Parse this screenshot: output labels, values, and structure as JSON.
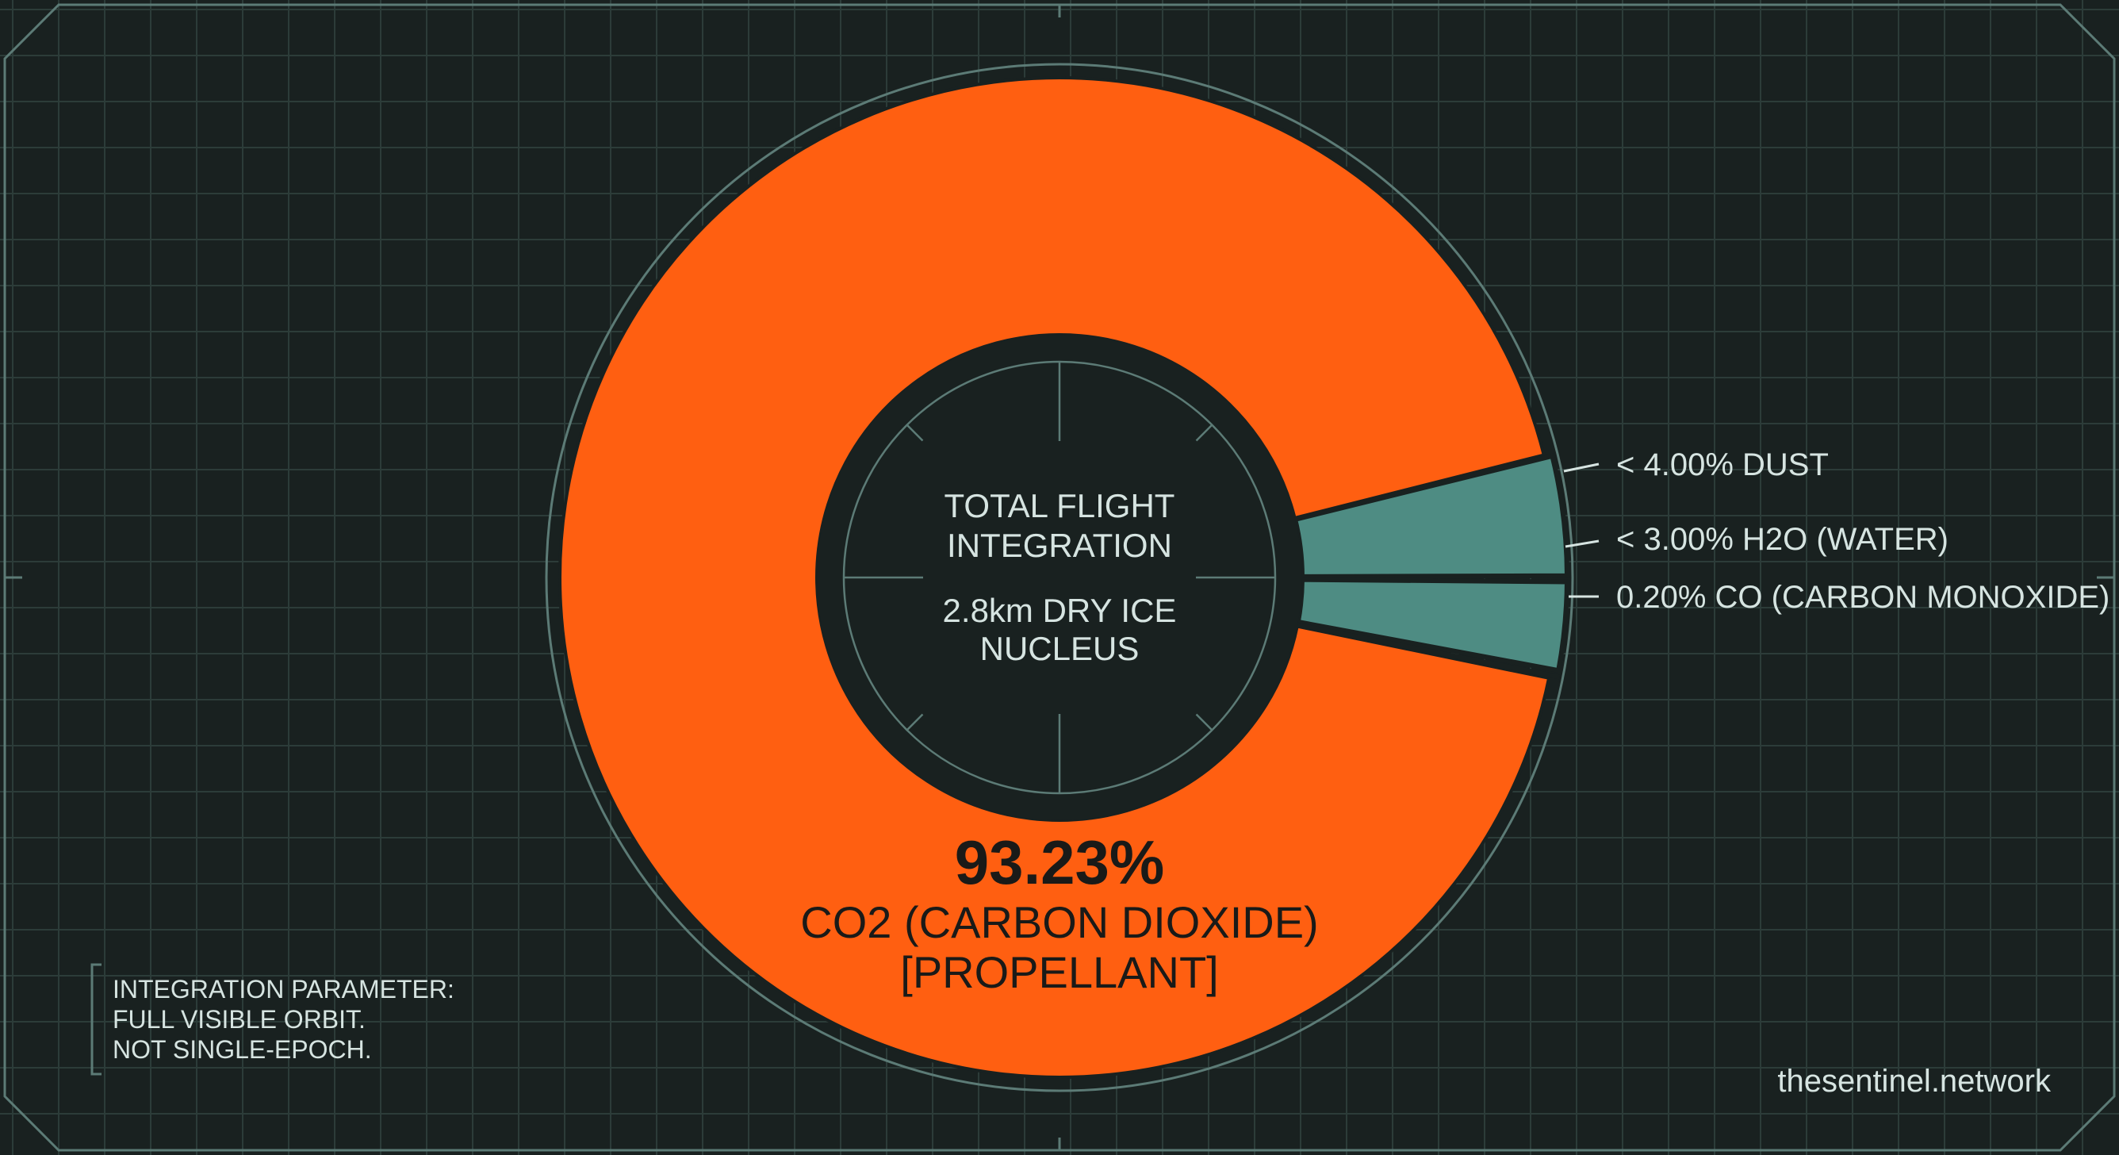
{
  "chart_data": {
    "type": "pie",
    "style": "donut",
    "center_label": {
      "line1": "TOTAL FLIGHT",
      "line2": "INTEGRATION",
      "line3": "2.8km DRY ICE",
      "line4": "NUCLEUS"
    },
    "slices": [
      {
        "value_label": "93.23%",
        "name": "CO2 (CARBON DIOXIDE)",
        "tag": "[PROPELLANT]",
        "value": 93.23,
        "color": "#FF5F11"
      },
      {
        "label": "< 4.00% DUST",
        "value": 4.0,
        "color": "#4E8C83"
      },
      {
        "label": "< 3.00% H2O (WATER)",
        "value": 3.0,
        "color": "#4E8C83"
      },
      {
        "label": "0.20% CO (CARBON MONOXIDE)",
        "value": 0.2,
        "color": "#4E8C83"
      }
    ],
    "colors": {
      "background": "#192120",
      "grid": "#2C3C39",
      "frame": "#5C7B76",
      "text": "#D6E4E1",
      "dark_text": "#1A1A18"
    }
  },
  "note": {
    "line1": "INTEGRATION PARAMETER:",
    "line2": "FULL VISIBLE ORBIT.",
    "line3": "NOT SINGLE-EPOCH."
  },
  "footer": {
    "site": "thesentinel.network"
  }
}
